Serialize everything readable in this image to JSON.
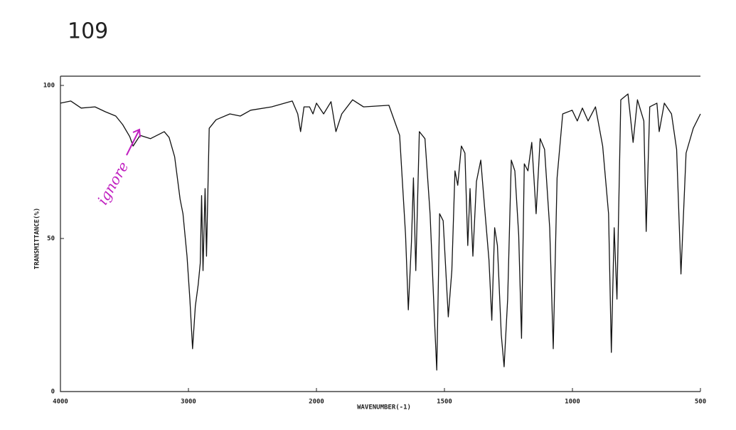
{
  "chart_data": {
    "type": "line",
    "title": "109",
    "x_label": "WAVENUMBER(-1)",
    "y_label": "TRANSMITTANCE(%)",
    "annotation": "ignore",
    "annotation_color": "#c020c0",
    "color": "#111111",
    "xlim": [
      4000,
      500
    ],
    "xscale": {
      "type": "piecewise",
      "break": 2000,
      "factor": 2
    },
    "xticks": [
      4000,
      3000,
      2000,
      1500,
      1000,
      500
    ],
    "ylim": [
      0,
      100
    ],
    "yticks": [
      0,
      50,
      100
    ],
    "x": [
      4000,
      3919,
      3838,
      3730,
      3649,
      3568,
      3514,
      3459,
      3432,
      3378,
      3297,
      3189,
      3151,
      3108,
      3065,
      3043,
      3011,
      2989,
      2968,
      2946,
      2924,
      2908,
      2897,
      2886,
      2870,
      2859,
      2838,
      2784,
      2676,
      2595,
      2514,
      2351,
      2189,
      2146,
      2124,
      2097,
      2054,
      2027,
      2000,
      1972,
      1943,
      1924,
      1901,
      1859,
      1816,
      1717,
      1675,
      1652,
      1641,
      1629,
      1621,
      1612,
      1598,
      1576,
      1556,
      1539,
      1530,
      1519,
      1505,
      1485,
      1471,
      1459,
      1448,
      1434,
      1420,
      1409,
      1400,
      1389,
      1375,
      1358,
      1341,
      1326,
      1315,
      1304,
      1293,
      1278,
      1267,
      1253,
      1239,
      1225,
      1210,
      1199,
      1188,
      1174,
      1159,
      1142,
      1126,
      1109,
      1089,
      1075,
      1060,
      1038,
      1001,
      981,
      961,
      939,
      910,
      882,
      859,
      848,
      837,
      826,
      811,
      783,
      763,
      746,
      721,
      712,
      698,
      670,
      661,
      641,
      613,
      593,
      576,
      556,
      528,
      500
    ],
    "values": [
      94.2,
      94.9,
      92.6,
      93,
      91.4,
      90,
      87.2,
      83.3,
      80.2,
      83.7,
      82.6,
      84.9,
      83,
      76.7,
      62.8,
      58.1,
      44.2,
      30.2,
      14,
      27.9,
      34.9,
      41.9,
      64,
      39.5,
      66.3,
      44.2,
      86,
      88.8,
      90.7,
      90,
      91.9,
      93,
      94.9,
      90.7,
      84.9,
      93,
      93,
      90.7,
      94.2,
      90.7,
      94.7,
      84.9,
      90.7,
      95.3,
      93,
      93.5,
      83.7,
      51.2,
      26.7,
      48.8,
      69.8,
      39.5,
      84.9,
      82.6,
      58.1,
      23.3,
      7,
      58.1,
      55.8,
      24.4,
      39.5,
      72.1,
      67.4,
      80.2,
      77.9,
      47.7,
      66.3,
      44.2,
      68.6,
      75.6,
      58.1,
      43,
      23.3,
      53.5,
      47.7,
      18.6,
      8.1,
      30.2,
      75.6,
      72.1,
      51.2,
      17.4,
      74.4,
      72.1,
      81.4,
      58.1,
      82.6,
      79.1,
      53.5,
      14,
      69.8,
      90.7,
      91.9,
      88.4,
      92.6,
      88.4,
      93,
      80.2,
      58.1,
      12.8,
      53.5,
      30.2,
      95.3,
      97.2,
      81.4,
      95.3,
      88.4,
      52.3,
      93,
      94.2,
      84.9,
      94.2,
      90.7,
      79.1,
      38.4,
      77.9,
      86,
      90.7
    ]
  }
}
